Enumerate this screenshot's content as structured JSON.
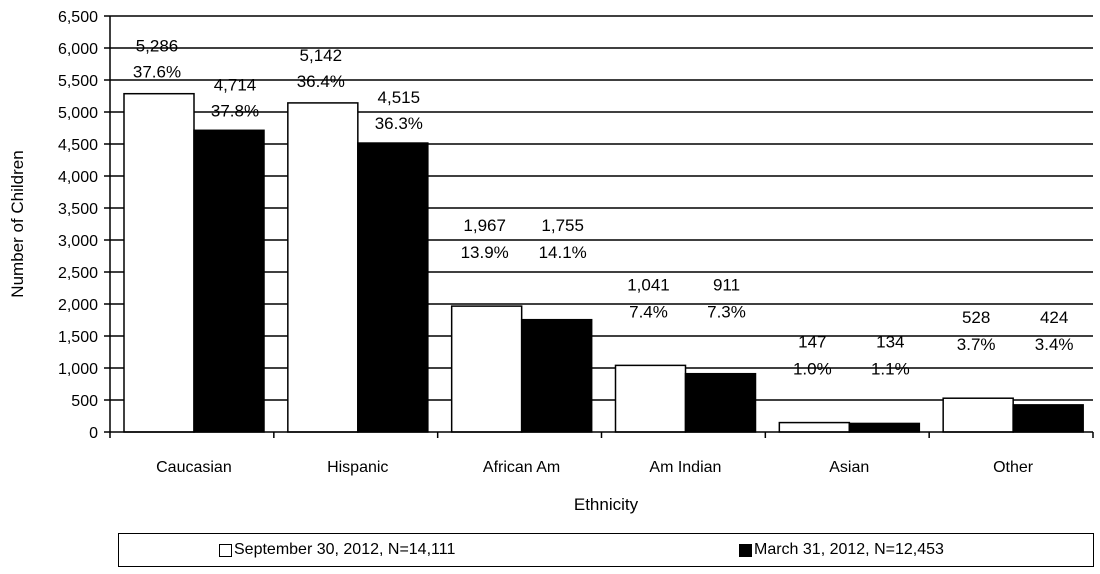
{
  "chart_data": {
    "type": "bar",
    "categories": [
      "Caucasian",
      "Hispanic",
      "African Am",
      "Am Indian",
      "Asian",
      "Other"
    ],
    "series": [
      {
        "name": "September 30, 2012, N=14,111",
        "color": "#ffffff",
        "values": [
          5286,
          5142,
          1967,
          1041,
          147,
          528
        ],
        "value_labels": [
          "5,286",
          "5,142",
          "1,967",
          "1,041",
          "147",
          "528"
        ],
        "percent_labels": [
          "37.6%",
          "36.4%",
          "13.9%",
          "7.4%",
          "1.0%",
          "3.7%"
        ]
      },
      {
        "name": "March 31, 2012, N=12,453",
        "color": "#000000",
        "values": [
          4714,
          4515,
          1755,
          911,
          134,
          424
        ],
        "value_labels": [
          "4,714",
          "4,515",
          "1,755",
          "911",
          "134",
          "424"
        ],
        "percent_labels": [
          "37.8%",
          "36.3%",
          "14.1%",
          "7.3%",
          "1.1%",
          "3.4%"
        ]
      }
    ],
    "xlabel": "Ethnicity",
    "ylabel": "Number of Children",
    "ylim": [
      0,
      6500
    ],
    "yticks": [
      0,
      500,
      1000,
      1500,
      2000,
      2500,
      3000,
      3500,
      4000,
      4500,
      5000,
      5500,
      6000,
      6500
    ],
    "ytick_labels": [
      "0",
      "500",
      "1,000",
      "1,500",
      "2,000",
      "2,500",
      "3,000",
      "3,500",
      "4,000",
      "4,500",
      "5,000",
      "5,500",
      "6,000",
      "6,500"
    ],
    "grid": true,
    "legend_position": "bottom"
  }
}
